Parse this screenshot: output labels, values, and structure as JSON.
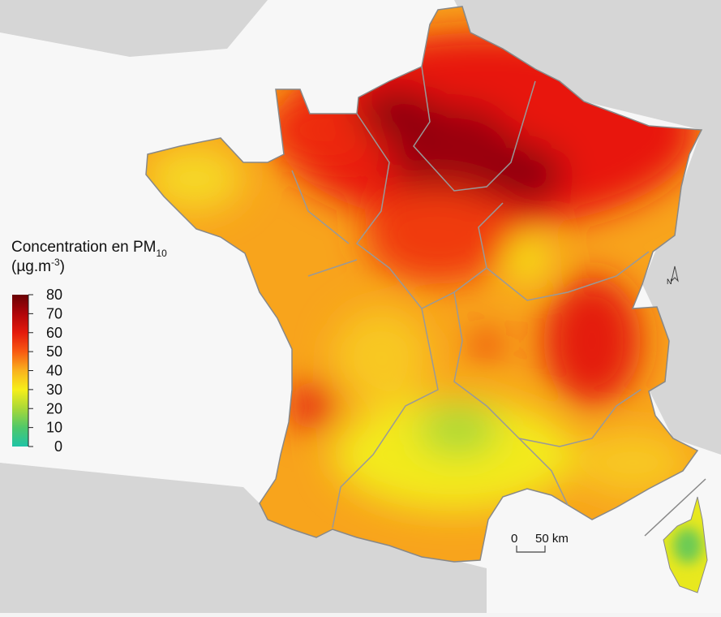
{
  "legend": {
    "title": "Concentration en PM",
    "title_sub": "10",
    "unit_open": "(µg.m",
    "unit_sup": "-3",
    "unit_close": ")",
    "ticks": [
      0,
      10,
      20,
      30,
      40,
      50,
      60,
      70,
      80
    ],
    "colors": [
      "#1fc3a6",
      "#4fc86a",
      "#a8d838",
      "#f6ef1a",
      "#f9b21e",
      "#f85a12",
      "#e41a0c",
      "#b0060a",
      "#6a0205"
    ]
  },
  "scale_bar": {
    "start": "0",
    "end": "50 km"
  },
  "north": "N"
}
